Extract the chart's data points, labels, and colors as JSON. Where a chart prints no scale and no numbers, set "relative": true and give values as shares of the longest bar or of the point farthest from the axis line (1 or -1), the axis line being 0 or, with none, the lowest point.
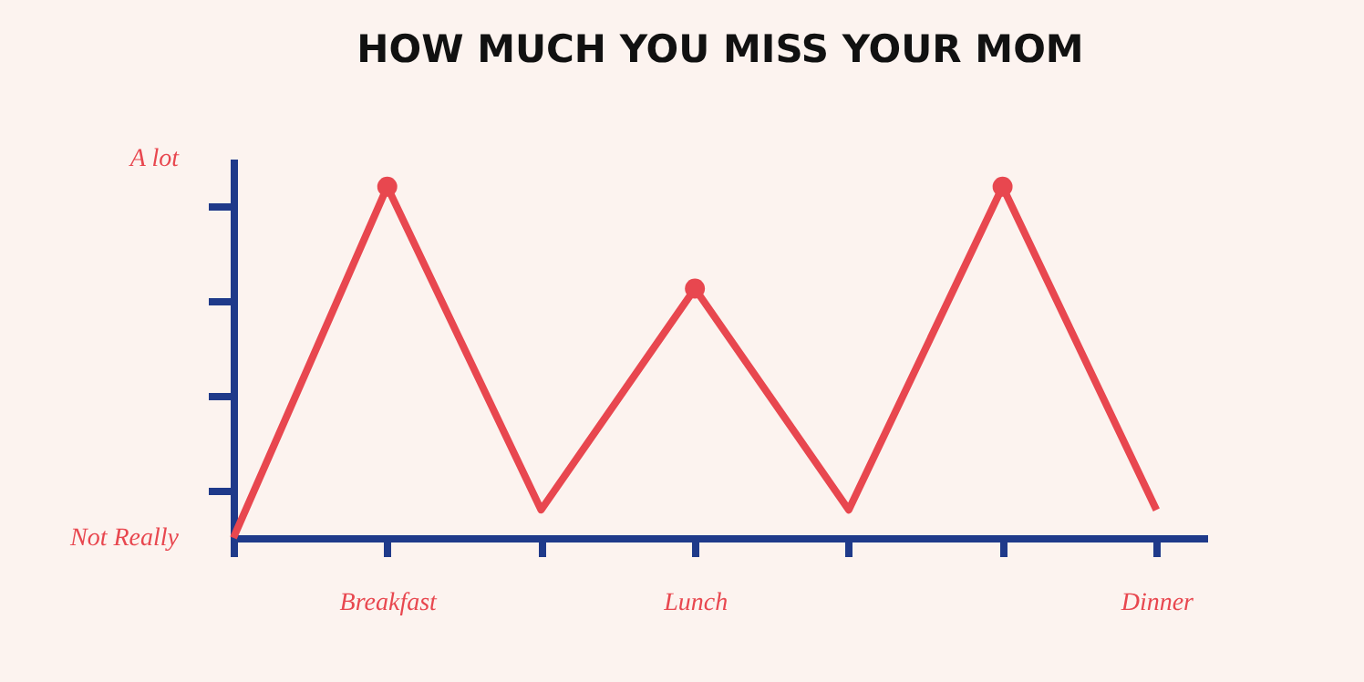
{
  "chart_data": {
    "type": "line",
    "title": "HOW MUCH YOU MISS YOUR MOM",
    "relative": true,
    "categories": [
      null,
      "Breakfast",
      null,
      "Lunch",
      null,
      null,
      "Dinner"
    ],
    "series": [
      {
        "color": "#e8474f",
        "values": [
          0,
          1,
          0.08,
          0.71,
          0.08,
          1,
          0.08
        ],
        "marker": "none",
        "line_style": "solid"
      },
      {
        "type": "scatter",
        "color": "#e8474f",
        "values": [
          null,
          1,
          null,
          0.71,
          null,
          1,
          null
        ],
        "marker": "circle"
      }
    ],
    "annotations": [
      "A lot",
      "Not Really"
    ],
    "grid": false
  }
}
